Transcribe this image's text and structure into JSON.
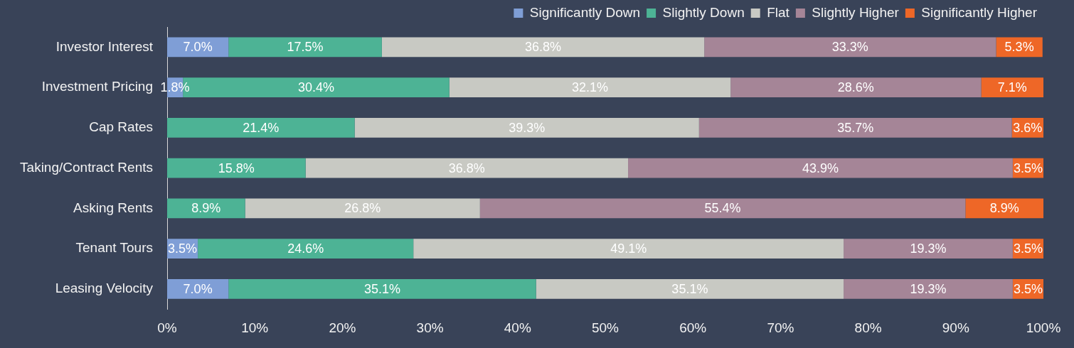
{
  "chart_data": {
    "type": "bar",
    "orientation": "horizontal",
    "stacked": true,
    "categories": [
      "Investor Interest",
      "Investment Pricing",
      "Cap Rates",
      "Taking/Contract Rents",
      "Asking Rents",
      "Tenant Tours",
      "Leasing Velocity"
    ],
    "series": [
      {
        "name": "Significantly Down",
        "color": "#7f9ed6",
        "values": [
          7.0,
          1.8,
          null,
          null,
          null,
          3.5,
          7.0
        ],
        "value_labels": [
          "7.0%",
          "1.8%",
          null,
          null,
          null,
          "3.5%",
          "7.0%"
        ]
      },
      {
        "name": "Slightly Down",
        "color": "#4db395",
        "values": [
          17.5,
          30.4,
          21.4,
          15.8,
          8.9,
          24.6,
          35.1
        ],
        "value_labels": [
          "17.5%",
          "30.4%",
          "21.4%",
          "15.8%",
          "8.9%",
          "24.6%",
          "35.1%"
        ]
      },
      {
        "name": "Flat",
        "color": "#c8c9c3",
        "values": [
          36.8,
          32.1,
          39.3,
          36.8,
          26.8,
          49.1,
          35.1
        ],
        "value_labels": [
          "36.8%",
          "32.1%",
          "39.3%",
          "36.8%",
          "26.8%",
          "49.1%",
          "35.1%"
        ]
      },
      {
        "name": "Slightly Higher",
        "color": "#a58597",
        "values": [
          33.3,
          28.6,
          35.7,
          43.9,
          55.4,
          19.3,
          19.3
        ],
        "value_labels": [
          "33.3%",
          "28.6%",
          "35.7%",
          "43.9%",
          "55.4%",
          "19.3%",
          "19.3%"
        ]
      },
      {
        "name": "Significantly Higher",
        "color": "#ee6727",
        "values": [
          5.3,
          7.1,
          3.6,
          3.5,
          8.9,
          3.5,
          3.5
        ],
        "value_labels": [
          "5.3%",
          "7.1%",
          "3.6%",
          "3.5%",
          "8.9%",
          "3.5%",
          "3.5%"
        ]
      }
    ],
    "xlim": [
      0,
      100
    ],
    "xticks": [
      {
        "value": 0,
        "label": "0%"
      },
      {
        "value": 10,
        "label": "10%"
      },
      {
        "value": 20,
        "label": "20%"
      },
      {
        "value": 30,
        "label": "30%"
      },
      {
        "value": 40,
        "label": "40%"
      },
      {
        "value": 50,
        "label": "50%"
      },
      {
        "value": 60,
        "label": "60%"
      },
      {
        "value": 70,
        "label": "70%"
      },
      {
        "value": 80,
        "label": "80%"
      },
      {
        "value": 90,
        "label": "90%"
      },
      {
        "value": 100,
        "label": "100%"
      }
    ],
    "legend": "top right"
  }
}
